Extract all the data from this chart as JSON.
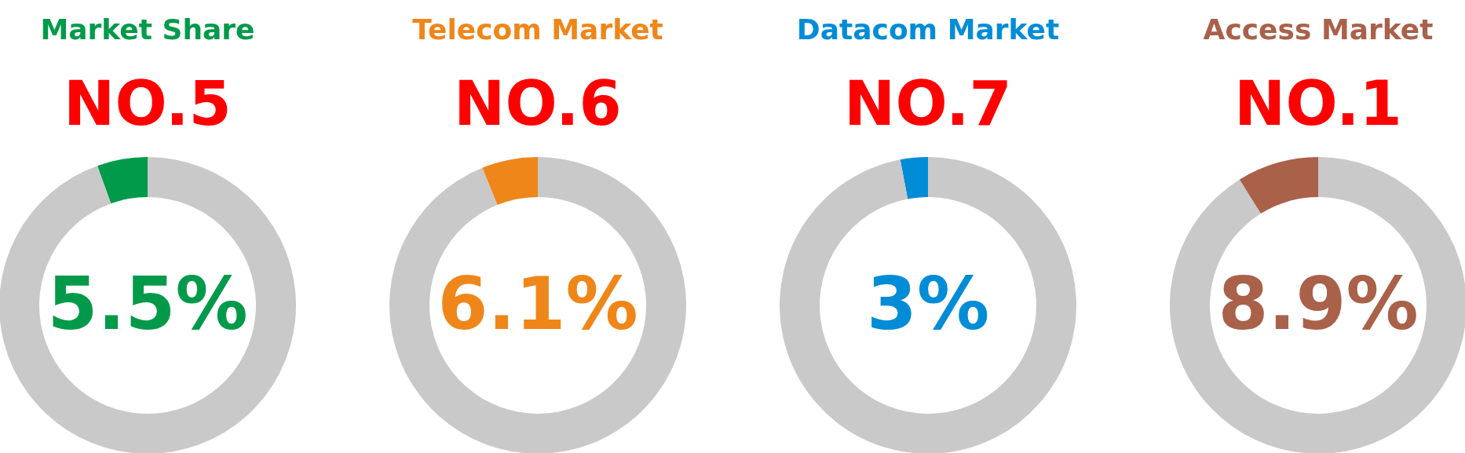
{
  "chart_data": [
    {
      "type": "donut",
      "title": "Market Share",
      "subtitle": "NO.5",
      "categories": [
        null,
        null
      ],
      "values": [
        5.5,
        94.5
      ],
      "colors": [
        "#009a4a",
        "#c8c9c8"
      ],
      "value_labels": [
        "5.5%",
        null
      ]
    },
    {
      "type": "donut",
      "title": "Telecom Market",
      "subtitle": "NO.6",
      "categories": [
        null,
        null
      ],
      "values": [
        6.1,
        93.9
      ],
      "colors": [
        "#ef861a",
        "#c8c9c8"
      ],
      "value_labels": [
        "6.1%",
        null
      ]
    },
    {
      "type": "donut",
      "title": "Datacom Market",
      "subtitle": "NO.7",
      "categories": [
        null,
        null
      ],
      "values": [
        3,
        97
      ],
      "colors": [
        "#008cd6",
        "#c8c9c8"
      ],
      "value_labels": [
        "3%",
        null
      ]
    },
    {
      "type": "donut",
      "title": "Access Market",
      "subtitle": "NO.1",
      "categories": [
        null,
        null
      ],
      "values": [
        8.9,
        91.1
      ],
      "colors": [
        "#a9614a",
        "#c8c9c8"
      ],
      "value_labels": [
        "8.9%",
        null
      ]
    }
  ]
}
